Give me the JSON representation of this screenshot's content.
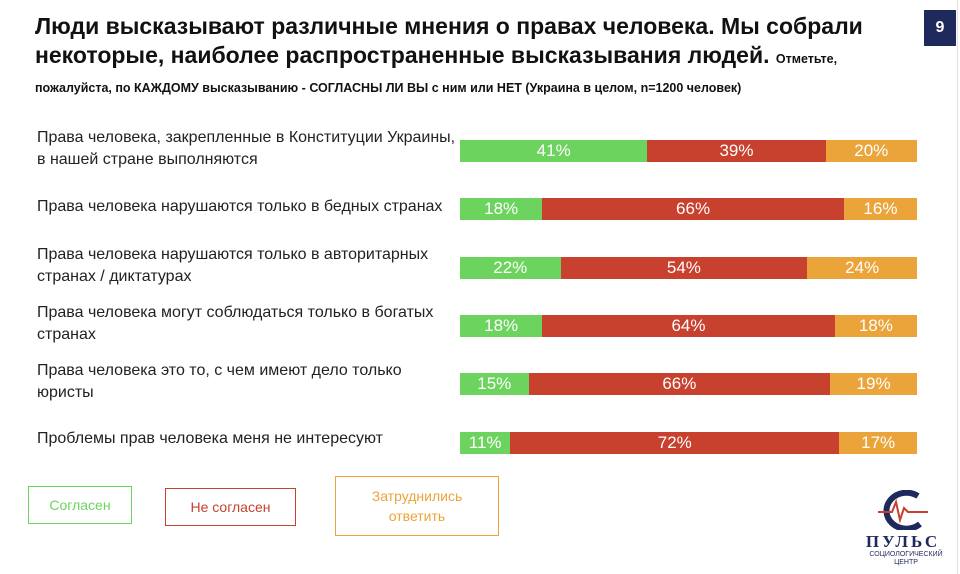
{
  "page_number": "9",
  "chart_data": {
    "type": "stacked-bar",
    "title": "Люди высказывают различные мнения о правах человека. Мы собрали некоторые, наиболее распространенные высказывания людей.",
    "subtitle": "Отметьте, пожалуйста, по КАЖДОМУ высказыванию - СОГЛАСНЫ ЛИ ВЫ с ним или НЕТ (Украина в целом, n=1200 человек)",
    "categories": [
      "Права человека, закрепленные в Конституции Украины, в нашей стране выполняются",
      "Права человека нарушаются  только в бедных странах",
      "Права человека нарушаются только в авторитарных странах / диктатурах",
      "Права человека могут соблюдаться только в богатых странах",
      "Права человека  это то, с чем  имеют дело только юристы",
      "Проблемы прав человека меня  не интересуют"
    ],
    "series": [
      {
        "name": "Согласен",
        "color": "#6dd35f",
        "values": [
          41,
          18,
          22,
          18,
          15,
          11
        ],
        "value_labels": [
          "41%",
          "18%",
          "22%",
          "18%",
          "15%",
          "11%"
        ]
      },
      {
        "name": "Не согласен",
        "color": "#c8402e",
        "values": [
          39,
          66,
          54,
          64,
          66,
          72
        ],
        "value_labels": [
          "39%",
          "66%",
          "54%",
          "64%",
          "66%",
          "72%"
        ]
      },
      {
        "name": "Затруднились ответить",
        "color": "#eba43a",
        "values": [
          20,
          16,
          24,
          18,
          19,
          17
        ],
        "value_labels": [
          "20%",
          "16%",
          "24%",
          "18%",
          "19%",
          "17%"
        ]
      }
    ]
  },
  "logo": {
    "name": "ПУЛЬС",
    "subtitle": "СОЦИОЛОГИЧЕСКИЙ ЦЕНТР"
  }
}
